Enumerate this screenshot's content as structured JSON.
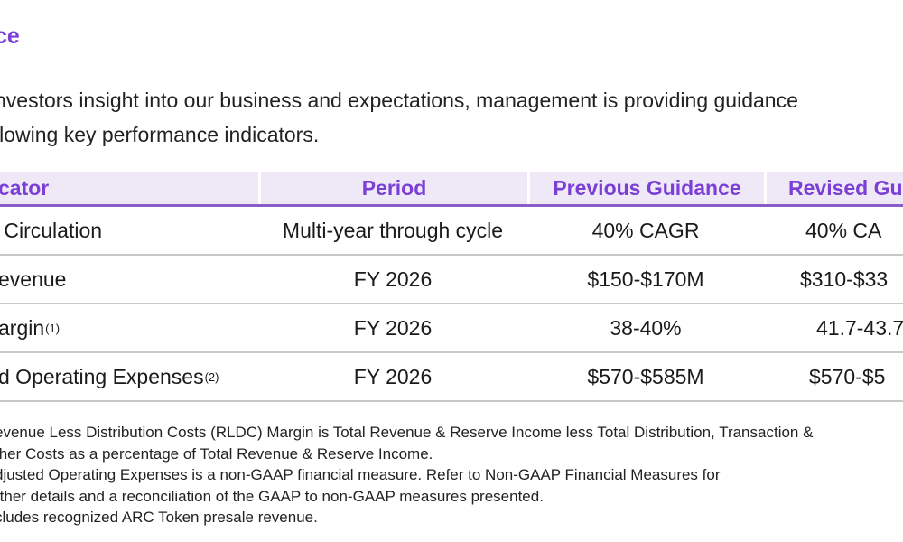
{
  "heading": "ce",
  "intro": {
    "line1": "nvestors insight into our business and expectations, management is providing guidance",
    "line2": "llowing key performance indicators."
  },
  "table": {
    "headers": [
      "cator",
      "Period",
      "Previous Guidance",
      "Revised Gu"
    ],
    "rows": [
      {
        "indicator": " Circulation",
        "sup": "",
        "period": "Multi-year through cycle",
        "previous": "40% CAGR",
        "revised": "40% CA"
      },
      {
        "indicator": "evenue",
        "sup": "",
        "period": "FY 2026",
        "previous": "$150-$170M",
        "revised": "$310-$33"
      },
      {
        "indicator": "argin",
        "sup": "(1)",
        "period": "FY 2026",
        "previous": "38-40%",
        "revised": "41.7-43.7"
      },
      {
        "indicator": "d Operating Expenses",
        "sup": "(2)",
        "period": "FY 2026",
        "previous": "$570-$585M",
        "revised": "$570-$5"
      }
    ]
  },
  "footnotes": [
    "evenue Less Distribution Costs (RLDC) Margin is Total Revenue & Reserve Income less Total Distribution, Transaction &",
    "ther Costs as a percentage of Total Revenue & Reserve Income.",
    "djusted Operating Expenses is a non-GAAP financial measure. Refer to Non-GAAP Financial Measures for",
    "rther details and a reconciliation of the GAAP to non-GAAP measures presented.",
    "cludes recognized ARC Token presale revenue."
  ],
  "colors": {
    "accent": "#7b3fd6",
    "header_bg": "#efe9f7",
    "header_rule": "#8a5cc9",
    "row_rule": "#c8c8c8"
  }
}
